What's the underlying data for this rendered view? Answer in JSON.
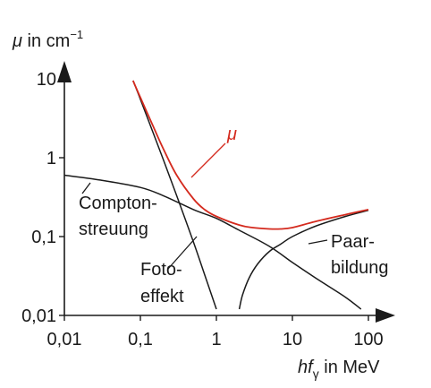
{
  "chart_data": {
    "type": "line",
    "ylabel_symbol": "μ",
    "ylabel_unit": " in cm",
    "ylabel_exp": "−1",
    "xlabel_h": "h",
    "xlabel_f": "f",
    "xlabel_sub": "γ",
    "xlabel_unit": " in  MeV",
    "x_scale": "log",
    "y_scale": "log",
    "xlim": [
      0.01,
      100
    ],
    "ylim": [
      0.01,
      10
    ],
    "x_ticks": [
      {
        "value": 0.01,
        "label": "0,01"
      },
      {
        "value": 0.1,
        "label": "0,1"
      },
      {
        "value": 1,
        "label": "1"
      },
      {
        "value": 10,
        "label": "10"
      },
      {
        "value": 100,
        "label": "100"
      }
    ],
    "y_ticks": [
      {
        "value": 0.01,
        "label": "0,01"
      },
      {
        "value": 0.1,
        "label": "0,1"
      },
      {
        "value": 1,
        "label": "1"
      },
      {
        "value": 10,
        "label": "10"
      }
    ],
    "grid": false,
    "colors": {
      "mu": "#d42a1e",
      "components": "#1a1a1a",
      "axis": "#1a1a1a"
    },
    "series": [
      {
        "name": "μ",
        "color": "#d42a1e",
        "x": [
          0.08,
          0.1,
          0.15,
          0.2,
          0.3,
          0.5,
          0.7,
          1,
          2,
          3,
          5,
          7,
          10,
          20,
          50,
          100
        ],
        "y": [
          9.5,
          5.8,
          2.4,
          1.3,
          0.6,
          0.3,
          0.22,
          0.18,
          0.14,
          0.13,
          0.125,
          0.125,
          0.13,
          0.155,
          0.19,
          0.22
        ]
      },
      {
        "name": "Foto-effekt",
        "color": "#1a1a1a",
        "x": [
          0.08,
          0.1,
          0.2,
          0.3,
          0.5,
          0.7,
          1
        ],
        "y": [
          9.5,
          5.5,
          0.95,
          0.33,
          0.085,
          0.033,
          0.012
        ]
      },
      {
        "name": "Compton-streuung",
        "color": "#1a1a1a",
        "x": [
          0.01,
          0.03,
          0.1,
          0.2,
          0.5,
          1,
          2,
          5,
          10,
          20,
          50,
          80
        ],
        "y": [
          0.6,
          0.52,
          0.42,
          0.33,
          0.22,
          0.17,
          0.12,
          0.075,
          0.047,
          0.03,
          0.017,
          0.012
        ]
      },
      {
        "name": "Paar-bildung",
        "color": "#1a1a1a",
        "x": [
          2.0,
          2.2,
          2.7,
          3.5,
          5,
          7,
          10,
          20,
          50,
          100
        ],
        "y": [
          0.012,
          0.018,
          0.03,
          0.045,
          0.065,
          0.08,
          0.1,
          0.135,
          0.18,
          0.215
        ]
      }
    ],
    "annotations": {
      "mu": "μ",
      "compton_1": "Compton-",
      "compton_2": "streuung",
      "foto_1": "Foto-",
      "foto_2": "effekt",
      "paar_1": "Paar-",
      "paar_2": "bildung"
    }
  }
}
